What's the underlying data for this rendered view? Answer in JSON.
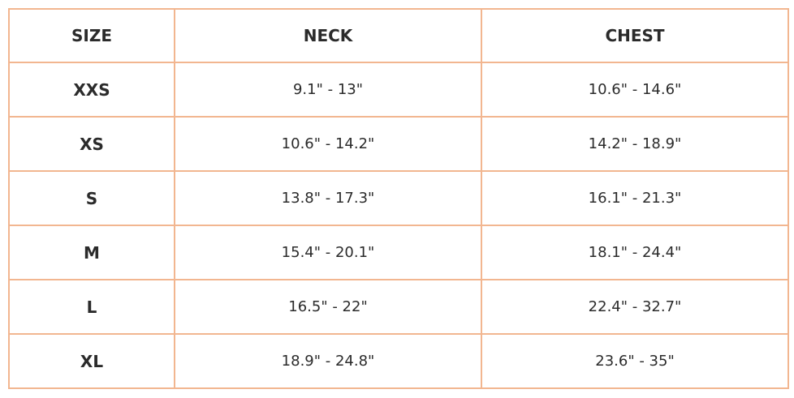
{
  "table": {
    "header": [
      "SIZE",
      "NECK",
      "CHEST"
    ],
    "rows": [
      [
        "XXS",
        "9.1\" - 13\"",
        "10.6\" - 14.6\""
      ],
      [
        "XS",
        "10.6\" - 14.2\"",
        "14.2\" - 18.9\""
      ],
      [
        "S",
        "13.8\" - 17.3\"",
        "16.1\" - 21.3\""
      ],
      [
        "M",
        "15.4\" - 20.1\"",
        "18.1\" - 24.4\""
      ],
      [
        "L",
        "16.5\" - 22\"",
        "22.4\" - 32.7\""
      ],
      [
        "XL",
        "18.9\" - 24.8\"",
        "23.6\" - 35\""
      ]
    ]
  }
}
